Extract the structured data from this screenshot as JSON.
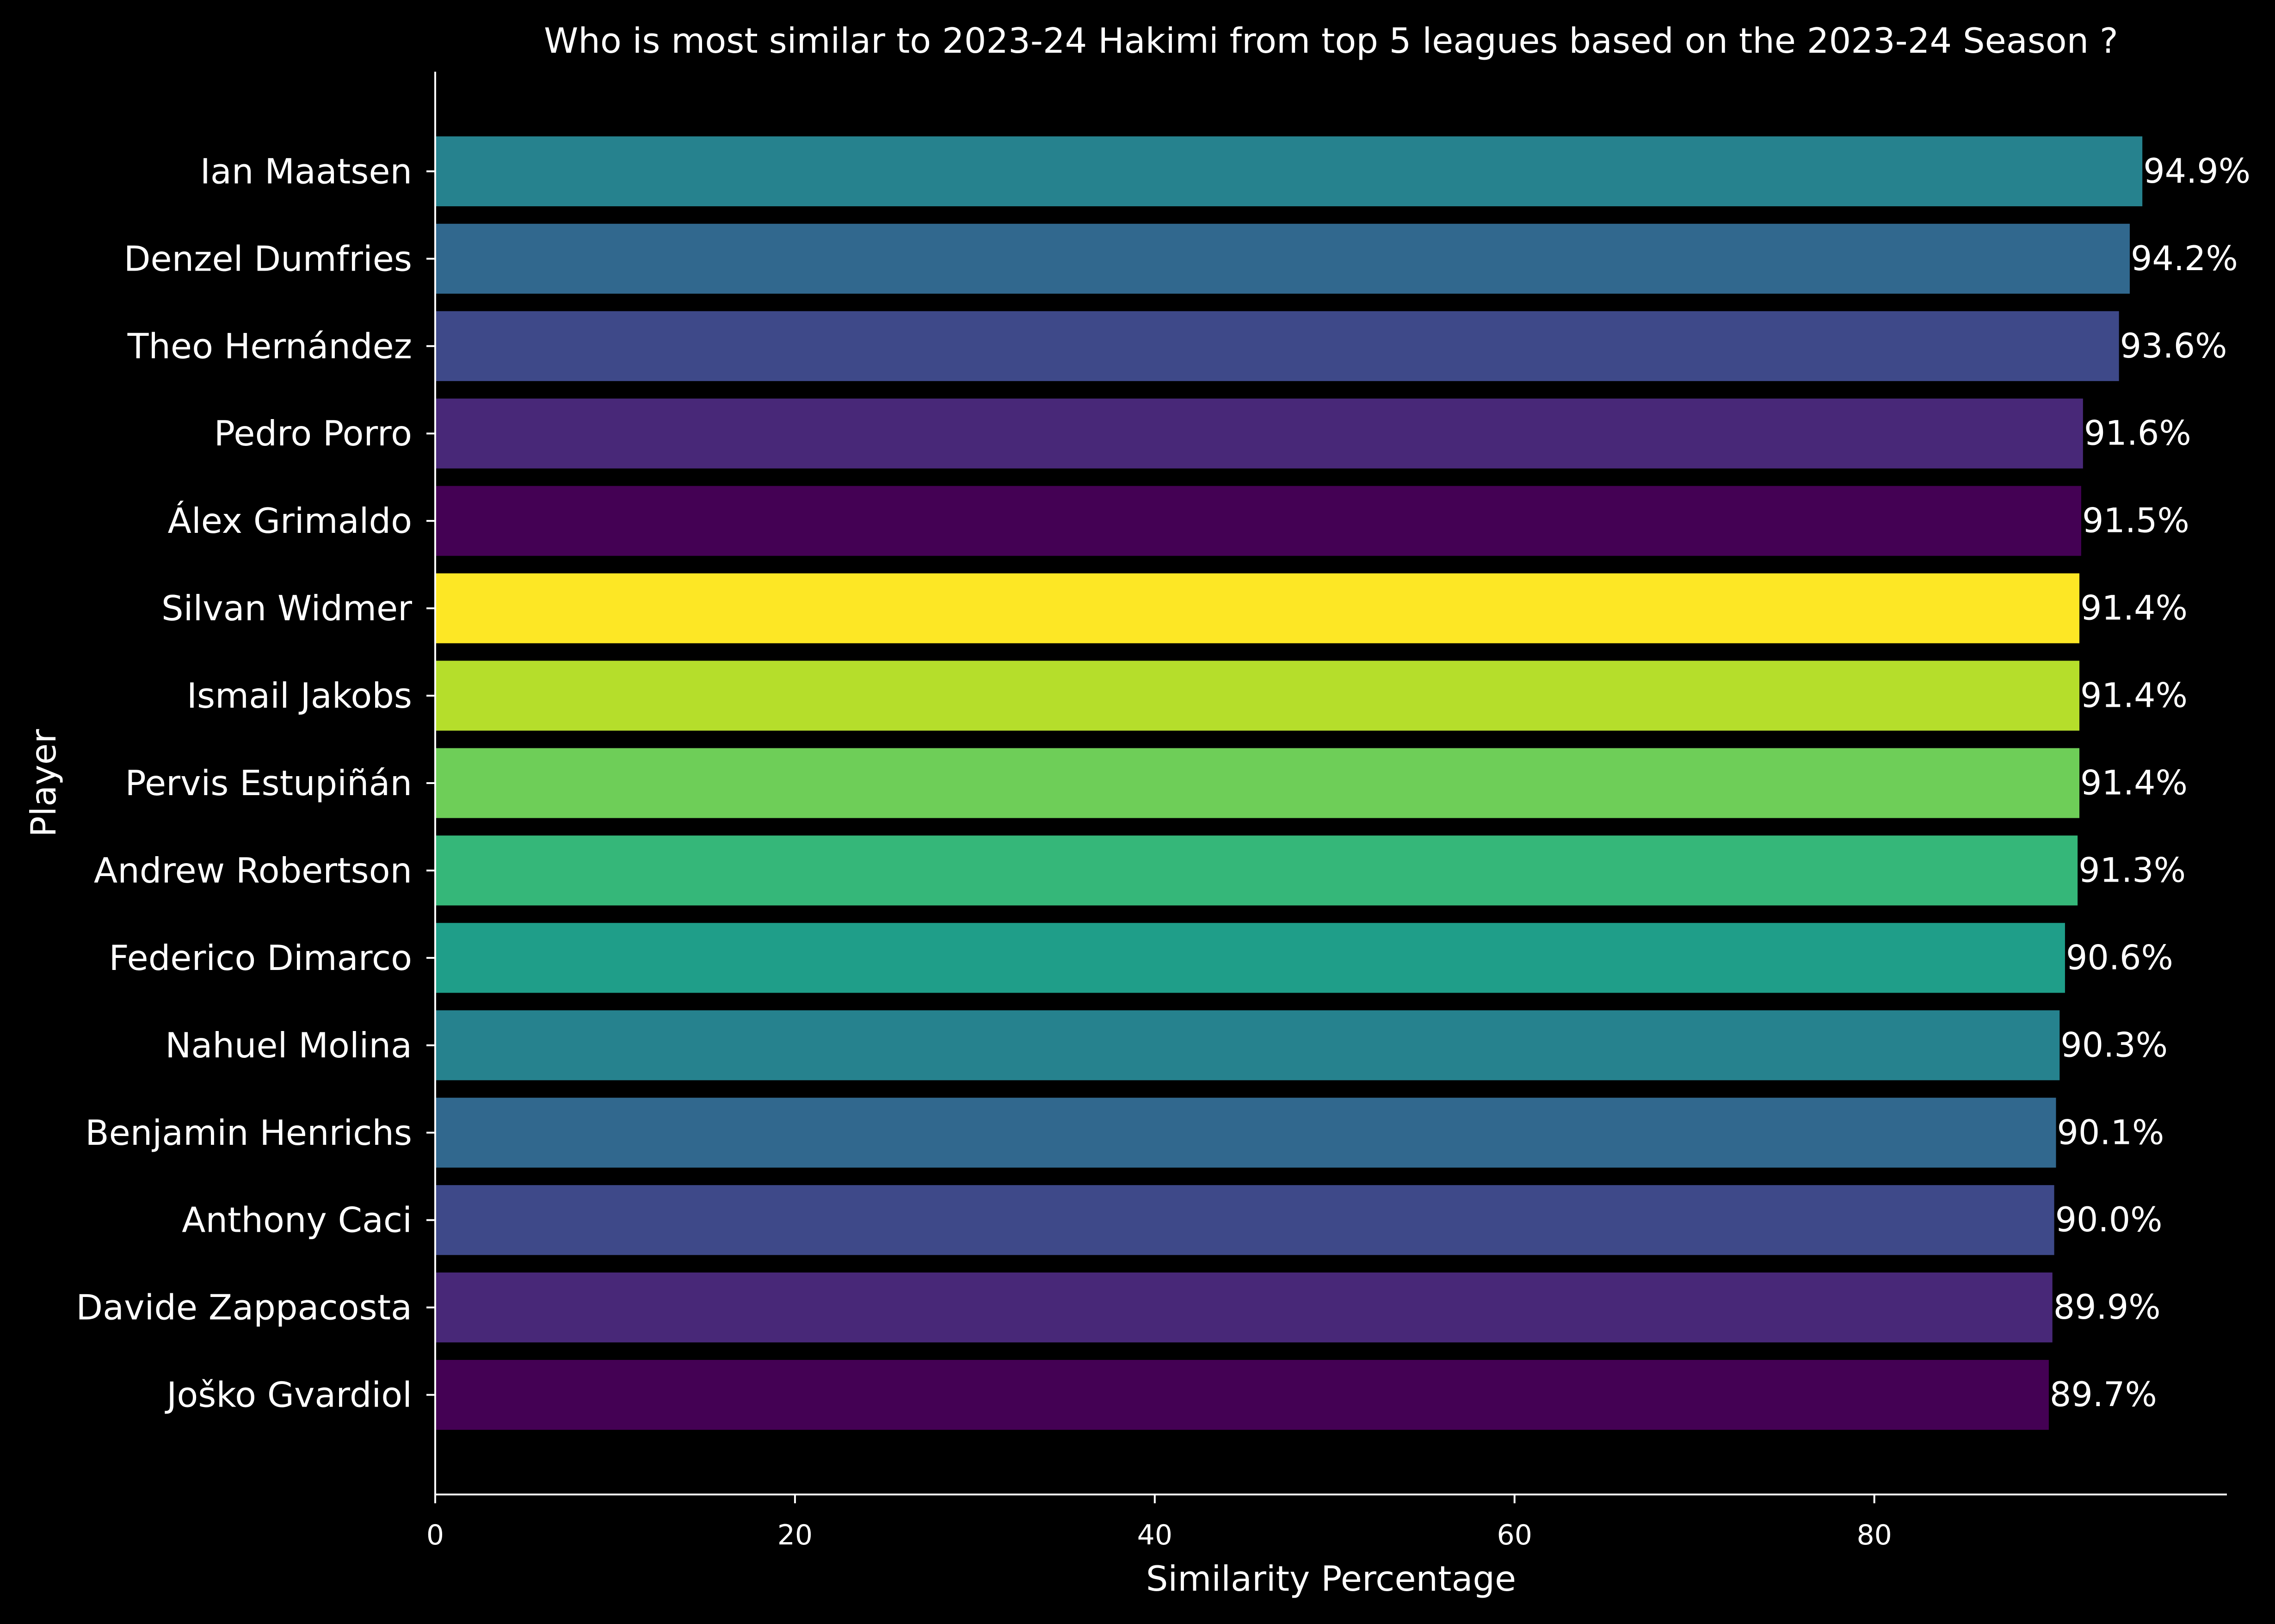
{
  "chart_data": {
    "type": "bar",
    "orientation": "horizontal",
    "title": "Who is most similar to 2023-24 Hakimi from top 5 leagues based on the 2023-24 Season ?",
    "xlabel": "Similarity Percentage",
    "ylabel": "Player",
    "categories": [
      "Ian Maatsen",
      "Denzel Dumfries",
      "Theo Hernández",
      "Pedro Porro",
      "Álex Grimaldo",
      "Silvan Widmer",
      "Ismail Jakobs",
      "Pervis Estupiñán",
      "Andrew Robertson",
      "Federico Dimarco",
      "Nahuel Molina",
      "Benjamin Henrichs",
      "Anthony Caci",
      "Davide Zappacosta",
      "Joško Gvardiol"
    ],
    "values": [
      94.9,
      94.2,
      93.6,
      91.6,
      91.5,
      91.4,
      91.4,
      91.4,
      91.3,
      90.6,
      90.3,
      90.1,
      90.0,
      89.9,
      89.7
    ],
    "data_labels": [
      "94.9%",
      "94.2%",
      "93.6%",
      "91.6%",
      "91.5%",
      "91.4%",
      "91.4%",
      "91.4%",
      "91.3%",
      "90.6%",
      "90.3%",
      "90.1%",
      "90.0%",
      "89.9%",
      "89.7%"
    ],
    "colors": [
      "#26828e",
      "#31688e",
      "#3e4989",
      "#482878",
      "#440154",
      "#fde725",
      "#b5de2b",
      "#6ece58",
      "#35b779",
      "#1f9e89",
      "#26828e",
      "#31688e",
      "#3e4989",
      "#482878",
      "#440154"
    ],
    "xlim": [
      0,
      99.6
    ],
    "xticks": [
      0,
      20,
      40,
      60,
      80
    ],
    "xtick_labels": [
      "0",
      "20",
      "40",
      "60",
      "80"
    ],
    "grid": false,
    "background": "#000000",
    "text_color": "#ffffff"
  }
}
